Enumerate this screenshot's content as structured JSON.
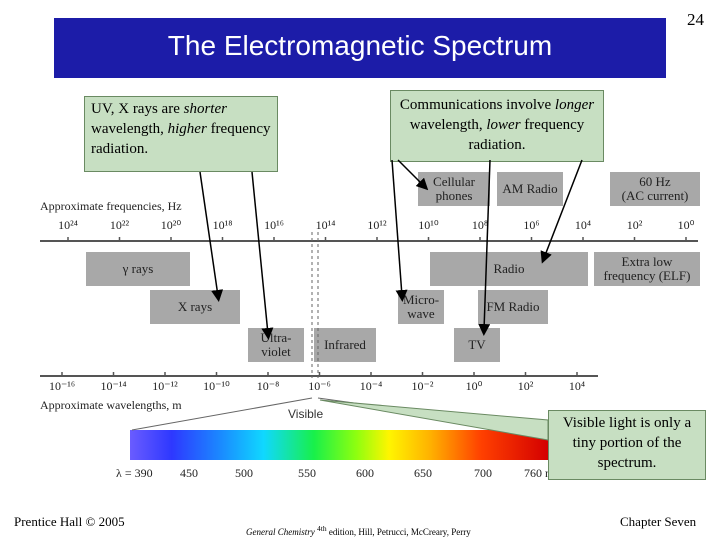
{
  "title": "The Electromagnetic Spectrum",
  "slide_number": "24",
  "notes": {
    "left": [
      "UV, X rays are ",
      "shorter",
      " wavelength, ",
      "higher",
      " frequency radiation."
    ],
    "right": [
      "Communications involve ",
      "longer",
      " wavelength, ",
      "lower",
      " frequency radiation."
    ],
    "bottom": "Visible light is only a tiny portion of the spectrum."
  },
  "freq_axis": {
    "label": "Approximate frequencies, Hz",
    "ticks": [
      "10²⁴",
      "10²²",
      "10²⁰",
      "10¹⁸",
      "10¹⁶",
      "10¹⁴",
      "10¹²",
      "10¹⁰",
      "10⁸",
      "10⁶",
      "10⁴",
      "10²",
      "10⁰"
    ]
  },
  "wave_axis": {
    "label": "Approximate wavelengths, m",
    "ticks": [
      "10⁻¹⁶",
      "10⁻¹⁴",
      "10⁻¹²",
      "10⁻¹⁰",
      "10⁻⁸",
      "10⁻⁶",
      "10⁻⁴",
      "10⁻²",
      "10⁰",
      "10²",
      "10⁴"
    ]
  },
  "bands": {
    "gamma": "γ rays",
    "xrays": "X rays",
    "uv": "Ultra-\nviolet",
    "infrared": "Infrared",
    "microwave": "Micro-\nwave",
    "radio": "Radio",
    "fm": "FM Radio",
    "tv": "TV",
    "cellular": "Cellular\nphones",
    "am": "AM Radio",
    "ac": "60 Hz\n(AC current)",
    "elf": "Extra low\nfrequency (ELF)"
  },
  "visible_label": "Visible",
  "visible_scale": {
    "prefix": "λ = 390",
    "ticks": [
      "450",
      "500",
      "550",
      "600",
      "650",
      "700",
      "760 nm"
    ]
  },
  "footer": {
    "left": "Prentice Hall © 2005",
    "center_italic": "General Chemistry",
    "center_sup": "4th",
    "center_rest": " edition, Hill, Petrucci, McCreary, Perry",
    "right": "Chapter Seven"
  }
}
